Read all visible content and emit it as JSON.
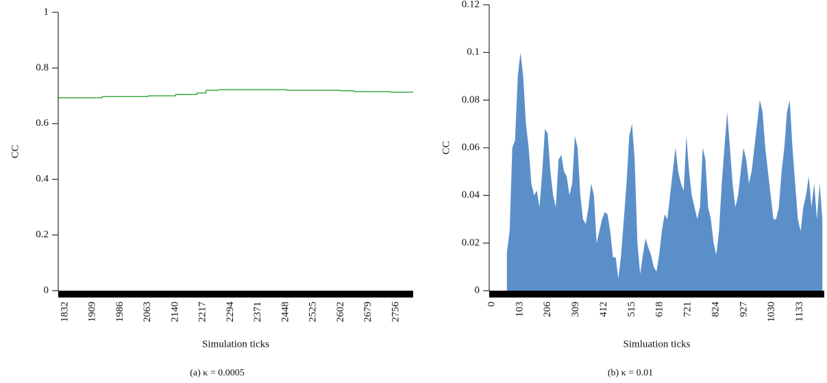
{
  "chart_data": [
    {
      "type": "line",
      "caption": "(a)  κ = 0.0005",
      "ylabel": "CC",
      "xlabel": "Simulation ticks",
      "x": [
        1813,
        1935,
        1936,
        2063,
        2064,
        2140,
        2141,
        2200,
        2201,
        2225,
        2226,
        2260,
        2261,
        2450,
        2451,
        2600,
        2601,
        2640,
        2641,
        2740,
        2741,
        2804
      ],
      "series": [
        {
          "name": "CC",
          "color": "#3aa843",
          "values": [
            0.693,
            0.693,
            0.697,
            0.697,
            0.7,
            0.7,
            0.705,
            0.705,
            0.71,
            0.71,
            0.72,
            0.72,
            0.722,
            0.722,
            0.72,
            0.72,
            0.718,
            0.718,
            0.715,
            0.715,
            0.713,
            0.713
          ]
        }
      ],
      "xlim": [
        1813,
        2804
      ],
      "xticks": [
        1832,
        1909,
        1986,
        2063,
        2140,
        2217,
        2294,
        2371,
        2448,
        2525,
        2602,
        2679,
        2756
      ],
      "ylim": [
        0,
        1
      ],
      "yticks": [
        0,
        0.2,
        0.4,
        0.6,
        0.8,
        1
      ]
    },
    {
      "type": "area",
      "caption": "(b)  κ = 0.01",
      "ylabel": "CC",
      "xlabel": "Simluation ticks",
      "x": [
        55,
        65,
        75,
        85,
        95,
        105,
        115,
        125,
        135,
        145,
        155,
        165,
        175,
        185,
        195,
        205,
        215,
        225,
        235,
        245,
        255,
        265,
        275,
        285,
        295,
        305,
        315,
        325,
        335,
        345,
        355,
        365,
        375,
        385,
        395,
        405,
        415,
        425,
        435,
        445,
        455,
        465,
        475,
        485,
        495,
        505,
        515,
        525,
        535,
        545,
        555,
        565,
        575,
        585,
        595,
        605,
        615,
        625,
        635,
        645,
        655,
        665,
        675,
        685,
        695,
        705,
        715,
        725,
        735,
        745,
        755,
        765,
        775,
        785,
        795,
        805,
        815,
        825,
        835,
        845,
        855,
        865,
        875,
        885,
        895,
        905,
        915,
        925,
        935,
        945,
        955,
        965,
        975,
        985,
        995,
        1005,
        1015,
        1025,
        1035,
        1045,
        1055,
        1065,
        1075,
        1085,
        1095,
        1105,
        1115,
        1125,
        1135,
        1145,
        1155,
        1165,
        1175,
        1185,
        1195,
        1205,
        1215
      ],
      "series": [
        {
          "name": "CC",
          "color": "#5b8fc9",
          "values": [
            0.016,
            0.025,
            0.06,
            0.063,
            0.09,
            0.1,
            0.09,
            0.07,
            0.06,
            0.045,
            0.04,
            0.042,
            0.035,
            0.05,
            0.068,
            0.066,
            0.05,
            0.04,
            0.035,
            0.055,
            0.057,
            0.05,
            0.048,
            0.04,
            0.045,
            0.065,
            0.06,
            0.04,
            0.03,
            0.028,
            0.035,
            0.045,
            0.04,
            0.02,
            0.025,
            0.03,
            0.033,
            0.032,
            0.025,
            0.014,
            0.014,
            0.005,
            0.015,
            0.03,
            0.045,
            0.065,
            0.07,
            0.055,
            0.02,
            0.007,
            0.015,
            0.022,
            0.018,
            0.015,
            0.01,
            0.008,
            0.015,
            0.025,
            0.032,
            0.03,
            0.04,
            0.05,
            0.06,
            0.05,
            0.045,
            0.042,
            0.065,
            0.05,
            0.04,
            0.035,
            0.03,
            0.035,
            0.06,
            0.055,
            0.035,
            0.03,
            0.02,
            0.015,
            0.025,
            0.045,
            0.06,
            0.075,
            0.06,
            0.045,
            0.035,
            0.04,
            0.05,
            0.06,
            0.055,
            0.045,
            0.05,
            0.06,
            0.07,
            0.08,
            0.075,
            0.06,
            0.05,
            0.04,
            0.03,
            0.03,
            0.035,
            0.05,
            0.06,
            0.075,
            0.08,
            0.06,
            0.045,
            0.03,
            0.025,
            0.035,
            0.04,
            0.048,
            0.035,
            0.045,
            0.03,
            0.045,
            0.03
          ]
        }
      ],
      "xlim": [
        -10,
        1222
      ],
      "xticks": [
        0,
        103,
        206,
        309,
        412,
        515,
        618,
        721,
        824,
        927,
        1030,
        1133
      ],
      "ylim": [
        0,
        0.12
      ],
      "yticks": [
        0,
        0.02,
        0.04,
        0.06,
        0.08,
        0.1,
        0.12
      ]
    }
  ]
}
